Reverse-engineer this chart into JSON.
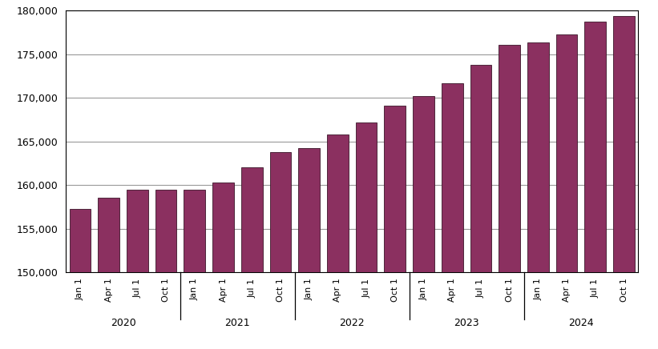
{
  "labels": [
    "Jan 1",
    "Apr 1",
    "Jul 1",
    "Oct 1",
    "Jan 1",
    "Apr 1",
    "Jul 1",
    "Oct 1",
    "Jan 1",
    "Apr 1",
    "Jul 1",
    "Oct 1",
    "Jan 1",
    "Apr 1",
    "Jul 1",
    "Oct 1",
    "Jan 1",
    "Apr 1",
    "Jul 1",
    "Oct 1"
  ],
  "year_labels": [
    "2020",
    "2021",
    "2022",
    "2023",
    "2024"
  ],
  "year_positions": [
    1.5,
    5.5,
    9.5,
    13.5,
    17.5
  ],
  "values": [
    157300,
    158500,
    159500,
    159500,
    159500,
    160300,
    162000,
    163800,
    164200,
    165800,
    167200,
    169100,
    170200,
    171700,
    173800,
    176100,
    176300,
    177300,
    178700,
    179400
  ],
  "bar_color": "#8B3060",
  "bar_edge_color": "#3a1528",
  "ylim": [
    150000,
    180000
  ],
  "yticks": [
    150000,
    155000,
    160000,
    165000,
    170000,
    175000,
    180000
  ],
  "background_color": "#ffffff",
  "grid_color": "#999999",
  "year_dividers": [
    4,
    8,
    12,
    16
  ],
  "figsize": [
    8.21,
    4.36
  ],
  "dpi": 100
}
